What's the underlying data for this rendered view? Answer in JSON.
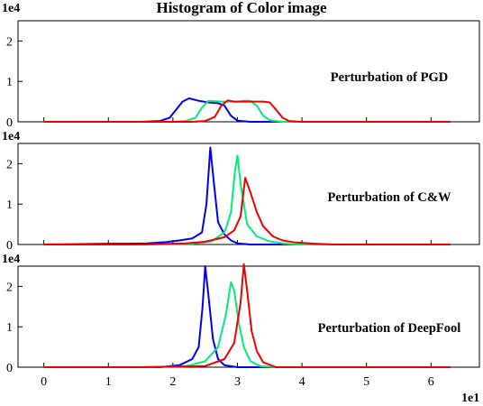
{
  "chart_data": {
    "type": "line",
    "title": "Histogram of Color image",
    "x_multiplier": "1e1",
    "xlim": [
      -0.4,
      6.75
    ],
    "xticks": [
      "0",
      "1",
      "2",
      "3",
      "4",
      "5",
      "6"
    ],
    "grid": false,
    "colors": {
      "blue": "#0000ee",
      "green": "#00ee77",
      "red": "#ee0000"
    },
    "panels": [
      {
        "label": "Perturbation of PGD",
        "y_multiplier": "1e4",
        "ylim": [
          0,
          2.5
        ],
        "yticks": [
          "0",
          "1",
          "2"
        ],
        "series": [
          {
            "color": "blue",
            "x": [
              0,
              1.0,
              1.5,
              1.8,
              1.95,
              2.05,
              2.15,
              2.25,
              2.4,
              2.55,
              2.7,
              2.8,
              2.9,
              3.0,
              3.2,
              6.3
            ],
            "y": [
              0,
              0,
              0,
              0.02,
              0.1,
              0.3,
              0.5,
              0.58,
              0.52,
              0.48,
              0.46,
              0.4,
              0.15,
              0.03,
              0,
              0
            ]
          },
          {
            "color": "green",
            "x": [
              0,
              1.0,
              2.0,
              2.2,
              2.35,
              2.45,
              2.55,
              2.75,
              3.0,
              3.1,
              3.2,
              3.3,
              3.4,
              3.5,
              3.7,
              6.3
            ],
            "y": [
              0,
              0,
              0,
              0.02,
              0.1,
              0.35,
              0.52,
              0.5,
              0.5,
              0.52,
              0.52,
              0.4,
              0.15,
              0.04,
              0,
              0
            ]
          },
          {
            "color": "red",
            "x": [
              0,
              1.0,
              2.3,
              2.5,
              2.65,
              2.75,
              2.85,
              2.95,
              3.4,
              3.5,
              3.6,
              3.7,
              3.8,
              4.0,
              6.3
            ],
            "y": [
              0,
              0,
              0,
              0.02,
              0.12,
              0.4,
              0.53,
              0.5,
              0.5,
              0.48,
              0.3,
              0.1,
              0.02,
              0,
              0
            ]
          }
        ]
      },
      {
        "label": "Perturbation of C&W",
        "y_multiplier": "1e4",
        "ylim": [
          0,
          2.5
        ],
        "yticks": [
          "0",
          "1",
          "2"
        ],
        "series": [
          {
            "color": "blue",
            "x": [
              0,
              0.5,
              1.0,
              1.3,
              1.6,
              1.9,
              2.1,
              2.3,
              2.45,
              2.52,
              2.58,
              2.63,
              2.7,
              2.8,
              2.9,
              3.0,
              3.2,
              6.3
            ],
            "y": [
              0,
              0.01,
              0.02,
              0.02,
              0.03,
              0.06,
              0.1,
              0.15,
              0.3,
              1.0,
              2.4,
              1.6,
              0.55,
              0.25,
              0.1,
              0.03,
              0,
              0
            ]
          },
          {
            "color": "green",
            "x": [
              0,
              1.5,
              2.3,
              2.6,
              2.8,
              2.9,
              2.96,
              3.0,
              3.05,
              3.15,
              3.3,
              3.5,
              3.7,
              3.9,
              6.3
            ],
            "y": [
              0,
              0,
              0.02,
              0.08,
              0.3,
              0.8,
              1.8,
              2.2,
              1.5,
              0.5,
              0.2,
              0.08,
              0.03,
              0,
              0
            ]
          },
          {
            "color": "red",
            "x": [
              0,
              1.5,
              2.2,
              2.5,
              2.8,
              2.95,
              3.05,
              3.12,
              3.2,
              3.3,
              3.4,
              3.55,
              3.7,
              3.9,
              4.2,
              4.5,
              6.3
            ],
            "y": [
              0,
              0,
              0.03,
              0.07,
              0.18,
              0.35,
              0.7,
              1.65,
              1.3,
              0.8,
              0.45,
              0.2,
              0.1,
              0.05,
              0.02,
              0,
              0
            ]
          }
        ]
      },
      {
        "label": "Perturbation of DeepFool",
        "y_multiplier": "1e4",
        "ylim": [
          0,
          2.5
        ],
        "yticks": [
          "0",
          "1",
          "2"
        ],
        "series": [
          {
            "color": "blue",
            "x": [
              0,
              1.0,
              1.8,
              2.1,
              2.3,
              2.4,
              2.46,
              2.5,
              2.55,
              2.62,
              2.7,
              2.8,
              3.0,
              6.3
            ],
            "y": [
              0,
              0,
              0,
              0.05,
              0.2,
              0.5,
              1.5,
              2.5,
              1.8,
              0.7,
              0.2,
              0.05,
              0,
              0
            ]
          },
          {
            "color": "green",
            "x": [
              0,
              1.5,
              2.2,
              2.5,
              2.7,
              2.82,
              2.9,
              2.95,
              3.02,
              3.1,
              3.2,
              3.35,
              3.6,
              6.3
            ],
            "y": [
              0,
              0,
              0.02,
              0.15,
              0.5,
              1.3,
              2.1,
              1.9,
              1.1,
              0.5,
              0.15,
              0.03,
              0,
              0
            ]
          },
          {
            "color": "red",
            "x": [
              0,
              1.5,
              2.5,
              2.8,
              2.95,
              3.05,
              3.1,
              3.15,
              3.22,
              3.3,
              3.4,
              3.6,
              6.3
            ],
            "y": [
              0,
              0,
              0.03,
              0.2,
              0.6,
              1.6,
              2.55,
              1.9,
              0.9,
              0.4,
              0.12,
              0,
              0
            ]
          }
        ]
      }
    ]
  }
}
